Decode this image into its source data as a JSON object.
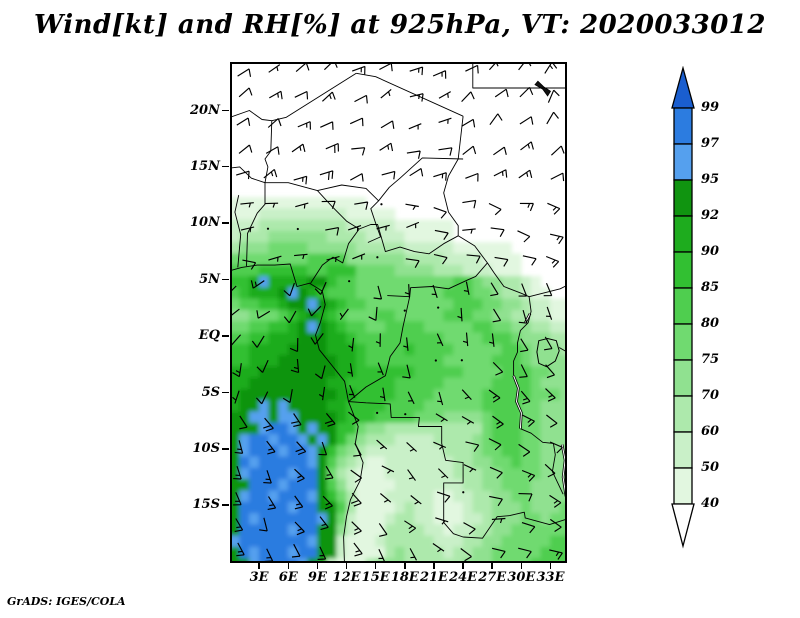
{
  "title": "Wind[kt] and RH[%] at 925hPa, VT: 2020033012",
  "attribution": "GrADS: IGES/COLA",
  "variable": "Wind and RH",
  "units": {
    "wind": "kt",
    "rh": "%"
  },
  "level": "925hPa",
  "valid_time": "2020033012",
  "axes": {
    "lat_ticks": [
      {
        "label": "20N",
        "value": 20
      },
      {
        "label": "15N",
        "value": 15
      },
      {
        "label": "10N",
        "value": 10
      },
      {
        "label": "5N",
        "value": 5
      },
      {
        "label": "EQ",
        "value": 0
      },
      {
        "label": "5S",
        "value": -5
      },
      {
        "label": "10S",
        "value": -10
      },
      {
        "label": "15S",
        "value": -15
      }
    ],
    "lon_ticks": [
      {
        "label": "3E",
        "value": 3
      },
      {
        "label": "6E",
        "value": 6
      },
      {
        "label": "9E",
        "value": 9
      },
      {
        "label": "12E",
        "value": 12
      },
      {
        "label": "15E",
        "value": 15
      },
      {
        "label": "18E",
        "value": 18
      },
      {
        "label": "21E",
        "value": 21
      },
      {
        "label": "24E",
        "value": 24
      },
      {
        "label": "27E",
        "value": 27
      },
      {
        "label": "30E",
        "value": 30
      },
      {
        "label": "33E",
        "value": 33
      }
    ]
  },
  "colorbar": {
    "labels_top_to_bottom": [
      "99",
      "97",
      "95",
      "92",
      "90",
      "85",
      "80",
      "75",
      "70",
      "60",
      "50",
      "40"
    ],
    "segment_codes_top_to_bottom": [
      "b",
      "a",
      "9",
      "8",
      "7",
      "6",
      "5",
      "4",
      "3",
      "2",
      "1"
    ],
    "arrow_top_code": "c",
    "arrow_bottom_color": "#FFFFFF"
  },
  "chart_data": {
    "type": "heatmap",
    "overlay": "wind_barbs",
    "title": "Wind[kt] and RH[%] at 925hPa, VT: 2020033012",
    "lon_range": [
      0,
      34.7
    ],
    "lat_range": [
      24.3,
      -20.1
    ],
    "rh_levels": [
      40,
      50,
      60,
      70,
      75,
      80,
      85,
      90,
      92,
      95,
      97,
      99
    ],
    "rh_palette": {
      "1": "#E2F7E0",
      "2": "#C9F0C8",
      "3": "#ADE9AC",
      "4": "#90E190",
      "5": "#70DA70",
      "6": "#4FCE4F",
      "7": "#32C032",
      "8": "#1EAC1E",
      "9": "#109410",
      "a": "#55A0EE",
      "b": "#2C7CE0",
      "c": "#1A5ECF"
    },
    "rh_grid_note": "rows top(24.3N) to bottom(-20.7S), 1 deg cells, cols 0E-35E; 0=<40%, 1..9 greens 40-95, a=95-97, b=97-99, c=>99",
    "rh_grid_codes": [
      "00000 00000 00000 00000 00000 00000 00000",
      "00000 00000 00000 00000 00000 00000 00000",
      "00000 00000 00000 00000 00000 00000 00000",
      "00000 00000 00000 00000 00000 00000 00000",
      "00000 00000 00000 00000 00000 00000 00000",
      "00000 00000 00000 00000 00000 00000 00000",
      "00000 00000 00000 00000 00000 00000 00000",
      "00000 00000 00000 00000 00000 00000 00000",
      "00000 00000 00000 00000 00000 00000 00000",
      "00000 00000 00000 00000 00000 00000 00000",
      "00000 00000 00000 00000 00000 00000 00000",
      "00000 00000 00000 00000 00000 00000 00000",
      "11111 11111 11110 00000 00000 00000 00000",
      "11122 22222 22111 11000 00000 00000 00000",
      "22233 33333 33222 22111 11100 00000 00000",
      "23334 44444 33332 22211 11100 00000 00000",
      "34445 55544 44433 33322 22211 11110 00000",
      "55555 55566 66444 44433 33222 21111 00000",
      "66677 77766 77755 55444 43332 22111 00000",
      "778a8 88899 76655 55555 55566 54433 21000",
      "67888 9a987 66655 55555 55666 55433 21100",
      "56677 899a9 87665 55555 55566 65544 32211",
      "44555 67898 76555 66555 55666 55443 32211",
      "55667 789a9 87665 56666 55555 66554 43322",
      "66778 88999 88766 66666 66555 56665 44433",
      "77888 89999 88876 66676 66655 55566 54443",
      "77888 99999 98876 66666 66555 55666 54444",
      "88899 99999 98877 77776 66665 55566 65544",
      "88999 99999 88777 77666 66555 55666 65444",
      "89999 99999 98877 77666 65555 56666 65554",
      "899a9 a9999 88777 76666 55555 56666 55444",
      "99aa9 aa999 98777 66665 55444 45666 55444",
      "999ab ba9a9 97754 43333 33333 35666 55444",
      "9abba bba9a 97543 33222 23333 45666 55444",
      "9abbb abba9 75432 22222 22333 45566 55444",
      "9babb bbba9 64321 12222 22233 44556 55444",
      "9abbb babb9 53211 12222 22233 34455 55444",
      "99bbb abbb9 64211 11222 22223 34455 54444",
      "9abba bbba9 75311 12222 21122 33445 54444",
      "9bbbb babb9 96311 11232 21112 33444 54445",
      "9babb bbbba 95211 12332 21112 23444 55455",
      "9bbbb babb9 94211 13333 22122 33445 55555",
      "abbbb bbba9 92111 23333 32223 34455 55566",
      "9babb babb9 92111 13433 33233 44555 55666",
      "99abb bba98 21113 44433 33334 44555 56666"
    ],
    "wind_grid": {
      "note": "coarse estimated field; dir = meteorological FROM direction (deg), speed kt",
      "lat_band_edges": [
        24.3,
        18,
        12,
        6,
        0,
        -6,
        -12,
        -18,
        -20.1
      ],
      "lon_band_edges": [
        0,
        5,
        10,
        15,
        20,
        25,
        30,
        35
      ],
      "dir_from_deg": [
        [
          50,
          55,
          60,
          60,
          55,
          45,
          40
        ],
        [
          60,
          65,
          70,
          70,
          65,
          60,
          50
        ],
        [
          90,
          85,
          80,
          85,
          95,
          100,
          110
        ],
        [
          225,
          215,
          200,
          180,
          170,
          160,
          150
        ],
        [
          190,
          185,
          170,
          160,
          150,
          140,
          140
        ],
        [
          150,
          145,
          140,
          130,
          120,
          110,
          120
        ],
        [
          155,
          150,
          145,
          135,
          110,
          100,
          110
        ],
        [
          160,
          155,
          150,
          140,
          120,
          110,
          115
        ]
      ],
      "speed_kt": [
        [
          10,
          10,
          10,
          10,
          10,
          10,
          10
        ],
        [
          10,
          15,
          10,
          10,
          10,
          10,
          10
        ],
        [
          5,
          5,
          5,
          5,
          10,
          10,
          10
        ],
        [
          10,
          10,
          5,
          5,
          5,
          10,
          10
        ],
        [
          10,
          10,
          5,
          5,
          5,
          10,
          10
        ],
        [
          15,
          15,
          10,
          5,
          5,
          10,
          10
        ],
        [
          15,
          15,
          15,
          10,
          5,
          10,
          10
        ],
        [
          15,
          15,
          15,
          10,
          10,
          10,
          10
        ]
      ]
    }
  },
  "map": {
    "borders": [
      [
        [
          0,
          5.8
        ],
        [
          1.2,
          6.1
        ],
        [
          2.8,
          6.3
        ],
        [
          4.6,
          6.3
        ],
        [
          6.2,
          6.4
        ],
        [
          6.9,
          4.4
        ],
        [
          8.2,
          4.7
        ],
        [
          9.5,
          4.0
        ],
        [
          9.8,
          2.8
        ],
        [
          9.3,
          1.2
        ],
        [
          8.8,
          0.1
        ],
        [
          9.2,
          -1.2
        ],
        [
          10.5,
          -2.6
        ],
        [
          11.8,
          -4.0
        ],
        [
          12.2,
          -5.8
        ],
        [
          13.2,
          -8.0
        ],
        [
          12.9,
          -9.5
        ],
        [
          13.7,
          -11.2
        ],
        [
          13.4,
          -12.8
        ],
        [
          12.4,
          -14.5
        ],
        [
          12.0,
          -16.0
        ],
        [
          11.7,
          -17.8
        ],
        [
          11.8,
          -20.5
        ]
      ],
      [
        [
          0,
          14.9
        ],
        [
          1.0,
          15.0
        ],
        [
          2.2,
          14.0
        ],
        [
          3.6,
          13.6
        ],
        [
          6.0,
          13.6
        ],
        [
          9.0,
          12.9
        ],
        [
          11.5,
          13.4
        ],
        [
          14.0,
          13.1
        ],
        [
          15.3,
          12.0
        ],
        [
          14.5,
          11.3
        ],
        [
          15.0,
          10.0
        ],
        [
          15.5,
          8.8
        ],
        [
          14.2,
          8.3
        ]
      ],
      [
        [
          0,
          19.4
        ],
        [
          2.0,
          20.0
        ],
        [
          3.3,
          19.2
        ],
        [
          4.3,
          19.1
        ],
        [
          5.8,
          19.4
        ],
        [
          13.0,
          23.3
        ]
      ],
      [
        [
          13.0,
          23.3
        ],
        [
          15.0,
          23.0
        ],
        [
          24.0,
          19.5
        ]
      ],
      [
        [
          4.3,
          19.1
        ],
        [
          4.2,
          16.4
        ],
        [
          3.6,
          15.7
        ],
        [
          3.9,
          15.0
        ],
        [
          3.6,
          13.6
        ]
      ],
      [
        [
          25.0,
          24.3
        ],
        [
          25.0,
          22.0
        ],
        [
          34.7,
          22.0
        ]
      ],
      [
        [
          24.0,
          19.5
        ],
        [
          23.5,
          15.7
        ],
        [
          22.5,
          14.2
        ],
        [
          22.0,
          12.7
        ],
        [
          22.5,
          11.0
        ],
        [
          23.5,
          9.8
        ],
        [
          23.5,
          8.9
        ]
      ],
      [
        [
          23.5,
          8.9
        ],
        [
          25.2,
          8.0
        ],
        [
          26.5,
          6.5
        ],
        [
          27.2,
          5.6
        ],
        [
          28.2,
          4.4
        ],
        [
          30.0,
          3.8
        ],
        [
          30.8,
          3.5
        ],
        [
          31.0,
          2.2
        ],
        [
          30.7,
          1.2
        ],
        [
          29.9,
          0.5
        ],
        [
          29.6,
          -0.6
        ],
        [
          29.6,
          -1.4
        ],
        [
          29.2,
          -2.2
        ],
        [
          29.2,
          -3.5
        ]
      ],
      [
        [
          9.0,
          12.9
        ],
        [
          10.5,
          11.5
        ],
        [
          12.0,
          10.2
        ],
        [
          13.3,
          9.5
        ],
        [
          14.5,
          9.9
        ],
        [
          15.2,
          9.9
        ],
        [
          16.0,
          7.5
        ],
        [
          17.5,
          7.9
        ],
        [
          19.0,
          7.5
        ],
        [
          20.5,
          7.3
        ],
        [
          22.0,
          8.2
        ],
        [
          23.5,
          8.9
        ]
      ],
      [
        [
          8.3,
          4.7
        ],
        [
          9.5,
          6.3
        ],
        [
          10.6,
          7.0
        ],
        [
          11.6,
          6.5
        ],
        [
          12.2,
          8.2
        ],
        [
          13.3,
          9.5
        ]
      ],
      [
        [
          0.8,
          6.1
        ],
        [
          1.1,
          9.0
        ],
        [
          0.5,
          11.0
        ],
        [
          0.9,
          12.5
        ]
      ],
      [
        [
          1.7,
          6.2
        ],
        [
          1.8,
          9.1
        ],
        [
          2.8,
          10.9
        ],
        [
          3.6,
          11.7
        ],
        [
          3.6,
          13.6
        ]
      ],
      [
        [
          16.2,
          3.6
        ],
        [
          18.5,
          3.5
        ],
        [
          18.6,
          4.3
        ],
        [
          20.8,
          4.4
        ],
        [
          22.5,
          4.2
        ],
        [
          24.5,
          5.0
        ],
        [
          25.3,
          5.3
        ],
        [
          26.5,
          6.5
        ]
      ],
      [
        [
          12.2,
          -5.8
        ],
        [
          14.0,
          -4.5
        ],
        [
          16.0,
          -3.5
        ],
        [
          16.5,
          -1.8
        ],
        [
          17.5,
          -0.6
        ],
        [
          17.8,
          0.8
        ],
        [
          18.5,
          3.5
        ]
      ],
      [
        [
          12.2,
          -5.8
        ],
        [
          14.0,
          -5.9
        ],
        [
          16.5,
          -6.0
        ],
        [
          16.6,
          -7.2
        ],
        [
          19.5,
          -7.2
        ],
        [
          19.4,
          -8.0
        ],
        [
          21.8,
          -8.0
        ],
        [
          21.8,
          -9.5
        ],
        [
          22.2,
          -11.0
        ],
        [
          24.0,
          -11.2
        ],
        [
          24.0,
          -13.0
        ],
        [
          22.0,
          -13.0
        ],
        [
          22.0,
          -16.5
        ],
        [
          23.0,
          -17.5
        ],
        [
          24.0,
          -17.8
        ]
      ],
      [
        [
          29.9,
          -8.2
        ],
        [
          31.0,
          -8.6
        ],
        [
          32.2,
          -9.4
        ],
        [
          33.3,
          -9.5
        ],
        [
          33.5,
          -10.5
        ],
        [
          33.2,
          -12.0
        ],
        [
          34.3,
          -14.0
        ]
      ],
      [
        [
          24.0,
          -17.8
        ],
        [
          26.0,
          -17.9
        ],
        [
          27.5,
          -16.0
        ],
        [
          28.8,
          -15.9
        ],
        [
          30.3,
          -15.6
        ],
        [
          30.4,
          -16.1
        ],
        [
          32.9,
          -16.7
        ],
        [
          34.7,
          -16.2
        ]
      ],
      [
        [
          30.8,
          3.5
        ],
        [
          34.0,
          4.2
        ],
        [
          34.7,
          4.5
        ]
      ],
      [
        [
          33.9,
          -1.0
        ],
        [
          34.7,
          -1.4
        ]
      ],
      [
        [
          15.3,
          12.0
        ],
        [
          16.4,
          13.2
        ],
        [
          17.5,
          14.0
        ],
        [
          19.8,
          15.8
        ],
        [
          24.0,
          15.7
        ]
      ]
    ],
    "lakes_outline": [
      [
        [
          31.8,
          -0.4
        ],
        [
          32.7,
          -0.2
        ],
        [
          33.6,
          -0.4
        ],
        [
          33.9,
          -1.3
        ],
        [
          33.5,
          -2.2
        ],
        [
          32.6,
          -2.7
        ],
        [
          31.8,
          -2.4
        ],
        [
          31.6,
          -1.4
        ],
        [
          31.8,
          -0.4
        ]
      ]
    ],
    "lakes_double": [
      [
        [
          29.2,
          -3.5
        ],
        [
          29.7,
          -4.6
        ],
        [
          29.5,
          -5.8
        ],
        [
          30.0,
          -6.8
        ],
        [
          29.9,
          -8.2
        ]
      ],
      [
        [
          34.2,
          -9.6
        ],
        [
          34.5,
          -11.0
        ],
        [
          34.3,
          -12.5
        ],
        [
          34.6,
          -14.2
        ]
      ],
      [
        [
          30.4,
          1.2
        ],
        [
          30.9,
          2.0
        ]
      ]
    ],
    "lakes_filled": [
      [
        [
          31.4,
          22.3
        ],
        [
          32.2,
          21.9
        ],
        [
          32.7,
          21.3
        ],
        [
          33.0,
          21.7
        ],
        [
          32.3,
          22.1
        ],
        [
          31.7,
          22.6
        ]
      ]
    ]
  }
}
